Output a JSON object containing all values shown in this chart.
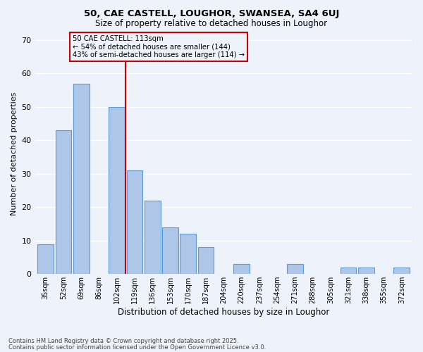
{
  "title1": "50, CAE CASTELL, LOUGHOR, SWANSEA, SA4 6UJ",
  "title2": "Size of property relative to detached houses in Loughor",
  "xlabel": "Distribution of detached houses by size in Loughor",
  "ylabel": "Number of detached properties",
  "categories": [
    "35sqm",
    "52sqm",
    "69sqm",
    "86sqm",
    "102sqm",
    "119sqm",
    "136sqm",
    "153sqm",
    "170sqm",
    "187sqm",
    "204sqm",
    "220sqm",
    "237sqm",
    "254sqm",
    "271sqm",
    "288sqm",
    "305sqm",
    "321sqm",
    "338sqm",
    "355sqm",
    "372sqm"
  ],
  "values": [
    9,
    43,
    57,
    0,
    50,
    31,
    22,
    14,
    12,
    8,
    0,
    3,
    0,
    0,
    3,
    0,
    0,
    2,
    2,
    0,
    2
  ],
  "bar_color": "#aec6e8",
  "bar_edge_color": "#5b9bd5",
  "background_color": "#eef3fb",
  "vline_x": 4.5,
  "vline_color": "#cc0000",
  "annotation_text": "50 CAE CASTELL: 113sqm\n← 54% of detached houses are smaller (144)\n43% of semi-detached houses are larger (114) →",
  "annotation_box_color": "#cc0000",
  "ylim": [
    0,
    72
  ],
  "yticks": [
    0,
    10,
    20,
    30,
    40,
    50,
    60,
    70
  ],
  "footer1": "Contains HM Land Registry data © Crown copyright and database right 2025.",
  "footer2": "Contains public sector information licensed under the Open Government Licence v3.0."
}
